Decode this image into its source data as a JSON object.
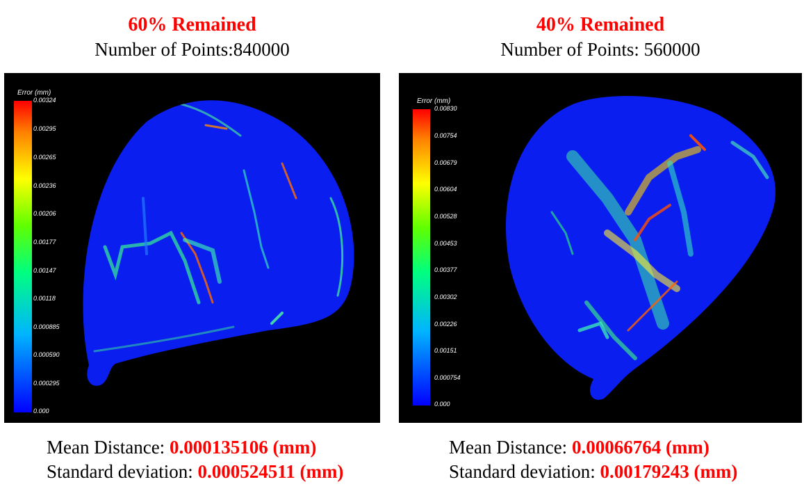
{
  "left": {
    "title": "60% Remained",
    "points_label": "Number of Points:",
    "points_value": "840000",
    "colorbar_title": "Error (mm)",
    "ticks": [
      "0.00324",
      "0.00295",
      "0.00265",
      "0.00236",
      "0.00206",
      "0.00177",
      "0.00147",
      "0.00118",
      "0.000885",
      "0.000590",
      "0.000295",
      "0.000"
    ],
    "mean_label": "Mean Distance: ",
    "mean_value": "0.000135106 (mm)",
    "std_label": "Standard deviation: ",
    "std_value": "0.000524511 (mm)"
  },
  "right": {
    "title": "40% Remained",
    "points_label": "Number of Points: ",
    "points_value": "560000",
    "colorbar_title": "Error (mm)",
    "ticks": [
      "0.00830",
      "0.00754",
      "0.00679",
      "0.00604",
      "0.00528",
      "0.00453",
      "0.00377",
      "0.00302",
      "0.00226",
      "0.00151",
      "0.000754",
      "0.000"
    ],
    "mean_label": "Mean Distance: ",
    "mean_value": "0.00066764 (mm)",
    "std_label": "Standard deviation: ",
    "std_value": "0.00179243 (mm)"
  },
  "colors": {
    "accent": "#ff0000",
    "surface": "#0a1ef0",
    "background": "#000000"
  }
}
